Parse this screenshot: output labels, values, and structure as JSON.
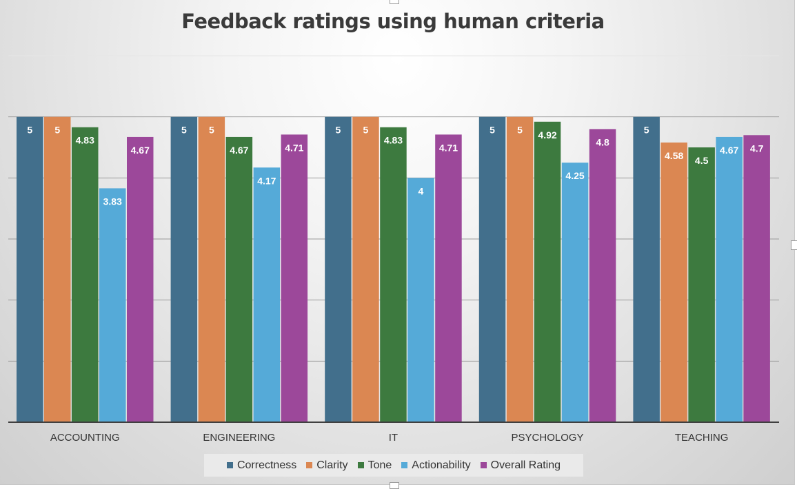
{
  "chart_data": {
    "type": "bar",
    "title": "Feedback ratings using human criteria",
    "categories": [
      "ACCOUNTING",
      "ENGINEERING",
      "IT",
      "PSYCHOLOGY",
      "TEACHING"
    ],
    "series": [
      {
        "name": "Correctness",
        "color": "#426f8c",
        "values": [
          5,
          5,
          5,
          5,
          5
        ]
      },
      {
        "name": "Clarity",
        "color": "#db8752",
        "values": [
          5,
          5,
          5,
          5,
          4.58
        ]
      },
      {
        "name": "Tone",
        "color": "#3d7a3f",
        "values": [
          4.83,
          4.67,
          4.83,
          4.92,
          4.5
        ]
      },
      {
        "name": "Actionability",
        "color": "#55aad8",
        "values": [
          3.83,
          4.17,
          4,
          4.25,
          4.67
        ]
      },
      {
        "name": "Overall Rating",
        "color": "#9c489a",
        "values": [
          4.67,
          4.71,
          4.71,
          4.8,
          4.7
        ]
      }
    ],
    "ylim": [
      0,
      6
    ],
    "grid": true,
    "legend": "bottom"
  }
}
